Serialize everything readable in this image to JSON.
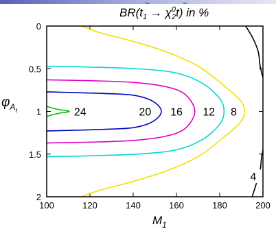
{
  "theme": {
    "bar_start": "#5a5fb8",
    "bar_end": "#e6e7f4"
  },
  "chart_data": {
    "type": "contour",
    "title": {
      "prefix": "BR(",
      "t1": "t",
      "t1_sub": "1",
      "arrow": " → ",
      "chi": "χ",
      "chi_sub": "2",
      "chi_sup": "0",
      "suffix": "t) in %"
    },
    "xlabel": {
      "base": "M",
      "sub": "1"
    },
    "ylabel": {
      "base": "φ",
      "sub": "A",
      "subsub": "t"
    },
    "xlim": [
      100,
      200
    ],
    "ylim": [
      0,
      2
    ],
    "y_inverted": true,
    "x_ticks": [
      "100",
      "120",
      "140",
      "160",
      "180",
      "200"
    ],
    "y_ticks": [
      "0",
      "0.5",
      "1",
      "1.5",
      "2"
    ],
    "contours": [
      {
        "level": "24",
        "color": "#00c000",
        "label_at": [
          115.5,
          1.0
        ],
        "points": [
          [
            100,
            0.94
          ],
          [
            102.5,
            0.96
          ],
          [
            106,
            0.98
          ],
          [
            110.5,
            1.0
          ],
          [
            106,
            1.02
          ],
          [
            102.5,
            1.04
          ],
          [
            100,
            1.06
          ]
        ]
      },
      {
        "level": "20",
        "color": "#0000c0",
        "label_at": [
          145.5,
          1.0
        ],
        "points": [
          [
            100,
            0.77
          ],
          [
            113,
            0.78
          ],
          [
            127,
            0.79
          ],
          [
            140,
            0.81
          ],
          [
            149,
            0.88
          ],
          [
            153,
            1.0
          ],
          [
            149,
            1.12
          ],
          [
            140,
            1.19
          ],
          [
            127,
            1.21
          ],
          [
            113,
            1.22
          ],
          [
            100,
            1.23
          ]
        ]
      },
      {
        "level": "16",
        "color": "#e000c0",
        "label_at": [
          160,
          1.0
        ],
        "points": [
          [
            100,
            0.63
          ],
          [
            120,
            0.64
          ],
          [
            140,
            0.66
          ],
          [
            155,
            0.71
          ],
          [
            164,
            0.8
          ],
          [
            168.5,
            1.0
          ],
          [
            164,
            1.2
          ],
          [
            155,
            1.29
          ],
          [
            140,
            1.34
          ],
          [
            120,
            1.36
          ],
          [
            100,
            1.37
          ]
        ]
      },
      {
        "level": "12",
        "color": "#00d8d8",
        "label_at": [
          175,
          1.0
        ],
        "points": [
          [
            100,
            0.47
          ],
          [
            120,
            0.48
          ],
          [
            142,
            0.5
          ],
          [
            160,
            0.55
          ],
          [
            172,
            0.67
          ],
          [
            180,
            0.85
          ],
          [
            182,
            1.0
          ],
          [
            180,
            1.15
          ],
          [
            172,
            1.33
          ],
          [
            160,
            1.45
          ],
          [
            142,
            1.5
          ],
          [
            120,
            1.52
          ],
          [
            100,
            1.53
          ]
        ]
      },
      {
        "level": "8",
        "color": "#f0e000",
        "label_at": [
          186.5,
          1.0
        ],
        "points": [
          [
            116,
            2.0
          ],
          [
            125,
            1.92
          ],
          [
            140,
            1.82
          ],
          [
            155,
            1.7
          ],
          [
            170,
            1.53
          ],
          [
            182,
            1.3
          ],
          [
            189.5,
            1.13
          ],
          [
            191.5,
            1.0
          ],
          [
            189.5,
            0.87
          ],
          [
            182,
            0.7
          ],
          [
            170,
            0.47
          ],
          [
            155,
            0.3
          ],
          [
            140,
            0.18
          ],
          [
            125,
            0.08
          ],
          [
            116,
            0.0
          ]
        ]
      },
      {
        "level": "4",
        "color": "#000000",
        "label_at": [
          195.5,
          1.76
        ],
        "points": [
          [
            192,
            0.0
          ],
          [
            195.5,
            0.15
          ],
          [
            197.8,
            0.3
          ],
          [
            198.6,
            0.45
          ],
          [
            199.4,
            0.55
          ],
          [
            200,
            0.6
          ]
        ],
        "points2": [
          [
            200,
            1.45
          ],
          [
            199.3,
            1.55
          ],
          [
            198.6,
            1.7
          ],
          [
            196.5,
            1.88
          ],
          [
            195,
            2.0
          ]
        ]
      }
    ]
  }
}
